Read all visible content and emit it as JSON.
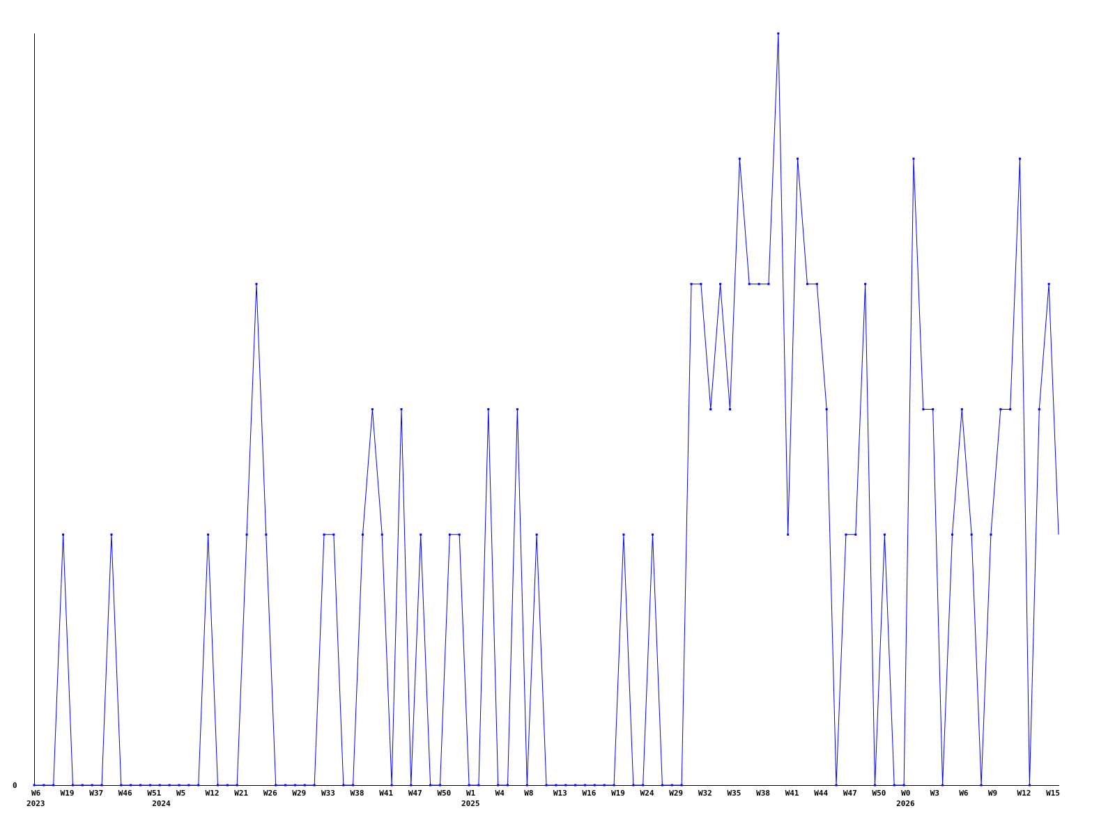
{
  "chart_data": {
    "type": "line",
    "title": "",
    "xlabel": "",
    "ylabel": "",
    "ylim": [
      0,
      6
    ],
    "grid": false,
    "line_color": "#0000ff",
    "axis_color": "#000000",
    "y_tick_labels": [
      {
        "value": 0,
        "label": "0"
      }
    ],
    "x_tick_labels": [
      {
        "index": 0,
        "label": "W6"
      },
      {
        "index": 3,
        "label": "W19"
      },
      {
        "index": 6,
        "label": "W37"
      },
      {
        "index": 9,
        "label": "W46"
      },
      {
        "index": 12,
        "label": "W51"
      },
      {
        "index": 15,
        "label": "W5"
      },
      {
        "index": 18,
        "label": "W12"
      },
      {
        "index": 21,
        "label": "W21"
      },
      {
        "index": 24,
        "label": "W26"
      },
      {
        "index": 27,
        "label": "W29"
      },
      {
        "index": 30,
        "label": "W33"
      },
      {
        "index": 33,
        "label": "W38"
      },
      {
        "index": 36,
        "label": "W41"
      },
      {
        "index": 39,
        "label": "W47"
      },
      {
        "index": 42,
        "label": "W50"
      },
      {
        "index": 45,
        "label": "W1"
      },
      {
        "index": 48,
        "label": "W4"
      },
      {
        "index": 51,
        "label": "W8"
      },
      {
        "index": 54,
        "label": "W13"
      },
      {
        "index": 57,
        "label": "W16"
      },
      {
        "index": 60,
        "label": "W19"
      },
      {
        "index": 63,
        "label": "W24"
      },
      {
        "index": 66,
        "label": "W29"
      },
      {
        "index": 69,
        "label": "W32"
      },
      {
        "index": 72,
        "label": "W35"
      },
      {
        "index": 75,
        "label": "W38"
      },
      {
        "index": 78,
        "label": "W41"
      },
      {
        "index": 81,
        "label": "W44"
      },
      {
        "index": 84,
        "label": "W47"
      },
      {
        "index": 87,
        "label": "W50"
      },
      {
        "index": 90,
        "label": "W0"
      },
      {
        "index": 93,
        "label": "W3"
      },
      {
        "index": 96,
        "label": "W6"
      },
      {
        "index": 99,
        "label": "W9"
      },
      {
        "index": 102,
        "label": "W12"
      },
      {
        "index": 105,
        "label": "W15"
      }
    ],
    "year_labels": [
      {
        "index": 0,
        "label": "2023"
      },
      {
        "index": 13,
        "label": "2024"
      },
      {
        "index": 45,
        "label": "2025"
      },
      {
        "index": 90,
        "label": "2026"
      }
    ],
    "values": [
      0,
      0,
      0,
      2,
      0,
      0,
      0,
      0,
      2,
      0,
      0,
      0,
      0,
      0,
      0,
      0,
      0,
      0,
      2,
      0,
      0,
      0,
      2,
      4,
      2,
      0,
      0,
      0,
      0,
      0,
      2,
      2,
      0,
      0,
      2,
      3,
      2,
      0,
      3,
      0,
      2,
      0,
      0,
      2,
      2,
      0,
      0,
      3,
      0,
      0,
      3,
      0,
      2,
      0,
      0,
      0,
      0,
      0,
      0,
      0,
      0,
      2,
      0,
      0,
      2,
      0,
      0,
      0,
      4,
      4,
      3,
      4,
      3,
      5,
      4,
      4,
      4,
      6,
      2,
      5,
      4,
      4,
      3,
      0,
      2,
      2,
      4,
      0,
      2,
      0,
      0,
      5,
      3,
      3,
      0,
      2,
      3,
      2,
      0,
      2,
      3,
      3,
      5,
      0,
      3,
      4,
      2
    ]
  }
}
